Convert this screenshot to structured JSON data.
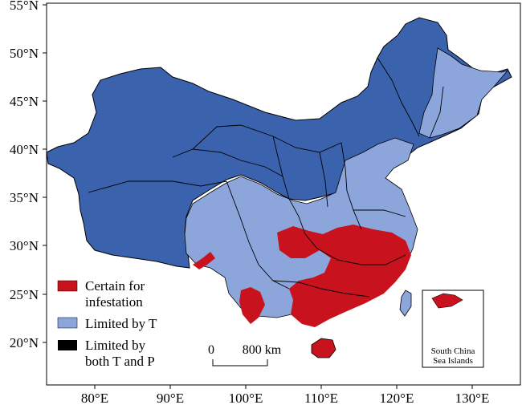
{
  "axes": {
    "lat_labels": [
      "55°N",
      "50°N",
      "45°N",
      "40°N",
      "35°N",
      "30°N",
      "25°N",
      "20°N"
    ],
    "lon_labels": [
      "80°E",
      "90°E",
      "100°E",
      "110°E",
      "120°E",
      "130°E"
    ]
  },
  "legend": {
    "items": [
      {
        "line1": "Certain for",
        "line2": "infestation",
        "color": "#c8121e"
      },
      {
        "line1": "Limited by T",
        "line2": "",
        "color": "#8ca6dc"
      },
      {
        "line1": "Limited by",
        "line2": "both T and P",
        "color": "#000000"
      }
    ]
  },
  "scale_bar": {
    "zero": "0",
    "distance": "800 km"
  },
  "inset": {
    "line1": "South China",
    "line2": "Sea Islands"
  },
  "colors": {
    "dark_blue": "#3a62ad",
    "light_blue": "#8ca6dc",
    "red": "#c8121e",
    "border": "#000000"
  }
}
